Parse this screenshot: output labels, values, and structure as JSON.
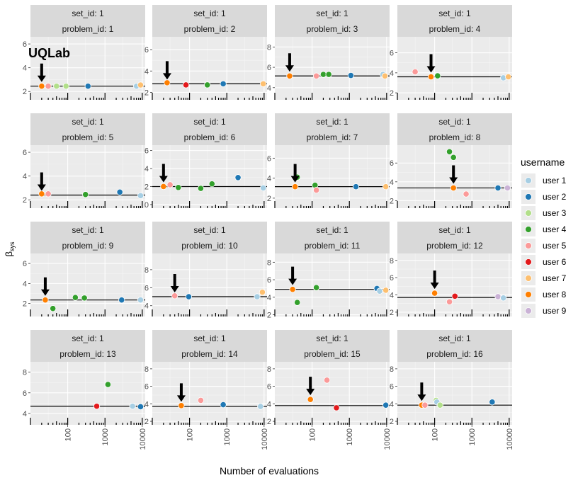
{
  "y_axis_label": "β",
  "y_axis_label_sub": "sys",
  "x_axis_label": "Number of evaluations",
  "brand": "UQLab",
  "legend": {
    "title": "username",
    "items": [
      {
        "name": "user 1",
        "color": "#A6CEE3"
      },
      {
        "name": "user 2",
        "color": "#1F78B4"
      },
      {
        "name": "user 3",
        "color": "#B2DF8A"
      },
      {
        "name": "user 4",
        "color": "#33A02C"
      },
      {
        "name": "user 5",
        "color": "#FB9A99"
      },
      {
        "name": "user 6",
        "color": "#E31A1C"
      },
      {
        "name": "user 7",
        "color": "#FDBF6F"
      },
      {
        "name": "user 8",
        "color": "#FF7F00"
      },
      {
        "name": "user 9",
        "color": "#CAB2D6"
      }
    ]
  },
  "chart_data": [
    {
      "type": "scatter",
      "set_label": "set_id: 1",
      "problem_label": "problem_id: 1",
      "y_ticks": [
        "2",
        "4",
        "6"
      ],
      "y_values": [
        2,
        4,
        6
      ],
      "ylim": [
        1.3,
        6.6
      ],
      "ref": 2.45,
      "arrow": {
        "x": 20,
        "y": 2.45
      },
      "points": [
        {
          "x": 20,
          "y": 2.45,
          "user": "user 8"
        },
        {
          "x": 30,
          "y": 2.45,
          "user": "user 5"
        },
        {
          "x": 50,
          "y": 2.45,
          "user": "user 3"
        },
        {
          "x": 90,
          "y": 2.45,
          "user": "user 3"
        },
        {
          "x": 350,
          "y": 2.45,
          "user": "user 2"
        },
        {
          "x": 7000,
          "y": 2.45,
          "user": "user 1"
        },
        {
          "x": 9000,
          "y": 2.55,
          "user": "user 7"
        }
      ]
    },
    {
      "type": "scatter",
      "set_label": "set_id: 1",
      "problem_label": "problem_id: 2",
      "y_ticks": [
        "2",
        "4",
        "6"
      ],
      "y_values": [
        2,
        4,
        6
      ],
      "ylim": [
        1.3,
        7.2
      ],
      "ref": 2.8,
      "arrow": {
        "x": 25,
        "y": 2.8
      },
      "points": [
        {
          "x": 25,
          "y": 2.9,
          "user": "user 8"
        },
        {
          "x": 80,
          "y": 2.7,
          "user": "user 6"
        },
        {
          "x": 300,
          "y": 2.7,
          "user": "user 4"
        },
        {
          "x": 800,
          "y": 2.8,
          "user": "user 2"
        },
        {
          "x": 9500,
          "y": 2.8,
          "user": "user 7"
        }
      ]
    },
    {
      "type": "scatter",
      "set_label": "set_id: 1",
      "problem_label": "problem_id: 3",
      "y_ticks": [
        "4",
        "6",
        "8"
      ],
      "y_values": [
        4,
        6,
        8
      ],
      "ylim": [
        2.8,
        9.0
      ],
      "ref": 5.15,
      "arrow": {
        "x": 25,
        "y": 5.15
      },
      "points": [
        {
          "x": 25,
          "y": 5.15,
          "user": "user 8"
        },
        {
          "x": 130,
          "y": 5.15,
          "user": "user 5"
        },
        {
          "x": 200,
          "y": 5.3,
          "user": "user 4"
        },
        {
          "x": 280,
          "y": 5.3,
          "user": "user 4"
        },
        {
          "x": 1100,
          "y": 5.2,
          "user": "user 2"
        },
        {
          "x": 8000,
          "y": 5.3,
          "user": "user 1"
        },
        {
          "x": 9000,
          "y": 5.15,
          "user": "user 7"
        }
      ]
    },
    {
      "type": "scatter",
      "set_label": "set_id: 1",
      "problem_label": "problem_id: 4",
      "y_ticks": [
        "2",
        "4",
        "6"
      ],
      "y_values": [
        2,
        4,
        6
      ],
      "ylim": [
        1.3,
        7.6
      ],
      "ref": 3.6,
      "arrow": {
        "x": 80,
        "y": 3.6
      },
      "points": [
        {
          "x": 30,
          "y": 4.1,
          "user": "user 5"
        },
        {
          "x": 80,
          "y": 3.6,
          "user": "user 8"
        },
        {
          "x": 120,
          "y": 3.7,
          "user": "user 4"
        },
        {
          "x": 7000,
          "y": 3.5,
          "user": "user 1"
        },
        {
          "x": 9500,
          "y": 3.6,
          "user": "user 7"
        }
      ]
    },
    {
      "type": "scatter",
      "set_label": "set_id: 1",
      "problem_label": "problem_id: 5",
      "y_ticks": [
        "2",
        "4",
        "6"
      ],
      "y_values": [
        2,
        4,
        6
      ],
      "ylim": [
        1.3,
        6.6
      ],
      "ref": 2.4,
      "arrow": {
        "x": 20,
        "y": 2.4
      },
      "points": [
        {
          "x": 20,
          "y": 2.5,
          "user": "user 8"
        },
        {
          "x": 30,
          "y": 2.5,
          "user": "user 5"
        },
        {
          "x": 300,
          "y": 2.45,
          "user": "user 4"
        },
        {
          "x": 2500,
          "y": 2.65,
          "user": "user 2"
        },
        {
          "x": 9000,
          "y": 2.35,
          "user": "user 1"
        }
      ]
    },
    {
      "type": "scatter",
      "set_label": "set_id: 1",
      "problem_label": "problem_id: 6",
      "y_ticks": [
        "0",
        "2",
        "4",
        "6"
      ],
      "y_values": [
        0,
        2,
        4,
        6
      ],
      "ylim": [
        -0.4,
        6.6
      ],
      "ref": 2.0,
      "arrow": {
        "x": 20,
        "y": 2.0
      },
      "points": [
        {
          "x": 20,
          "y": 2.0,
          "user": "user 8"
        },
        {
          "x": 30,
          "y": 2.2,
          "user": "user 5"
        },
        {
          "x": 50,
          "y": 1.9,
          "user": "user 4"
        },
        {
          "x": 200,
          "y": 1.8,
          "user": "user 4"
        },
        {
          "x": 400,
          "y": 2.3,
          "user": "user 4"
        },
        {
          "x": 2000,
          "y": 3.0,
          "user": "user 2"
        },
        {
          "x": 9500,
          "y": 1.85,
          "user": "user 1"
        }
      ]
    },
    {
      "type": "scatter",
      "set_label": "set_id: 1",
      "problem_label": "problem_id: 7",
      "y_ticks": [
        "2",
        "4",
        "6"
      ],
      "y_values": [
        2,
        4,
        6
      ],
      "ylim": [
        1.0,
        7.3
      ],
      "ref": 3.15,
      "arrow": {
        "x": 35,
        "y": 3.15
      },
      "points": [
        {
          "x": 35,
          "y": 3.15,
          "user": "user 8"
        },
        {
          "x": 40,
          "y": 4.1,
          "user": "user 4"
        },
        {
          "x": 120,
          "y": 3.3,
          "user": "user 4"
        },
        {
          "x": 130,
          "y": 2.8,
          "user": "user 5"
        },
        {
          "x": 1500,
          "y": 3.15,
          "user": "user 2"
        },
        {
          "x": 9500,
          "y": 3.15,
          "user": "user 7"
        }
      ]
    },
    {
      "type": "scatter",
      "set_label": "set_id: 1",
      "problem_label": "problem_id: 8",
      "y_ticks": [
        "2",
        "4",
        "6"
      ],
      "y_values": [
        2,
        4,
        6
      ],
      "ylim": [
        1.2,
        7.9
      ],
      "ref": 3.35,
      "arrow": {
        "x": 320,
        "y": 3.35
      },
      "points": [
        {
          "x": 250,
          "y": 7.2,
          "user": "user 4"
        },
        {
          "x": 320,
          "y": 6.6,
          "user": "user 4"
        },
        {
          "x": 320,
          "y": 3.35,
          "user": "user 8"
        },
        {
          "x": 700,
          "y": 2.7,
          "user": "user 5"
        },
        {
          "x": 5000,
          "y": 3.35,
          "user": "user 2"
        },
        {
          "x": 9000,
          "y": 3.35,
          "user": "user 9"
        }
      ]
    },
    {
      "type": "scatter",
      "set_label": "set_id: 1",
      "problem_label": "problem_id: 9",
      "y_ticks": [
        "2",
        "4",
        "6"
      ],
      "y_values": [
        2,
        4,
        6
      ],
      "ylim": [
        0.7,
        7.0
      ],
      "ref": 2.35,
      "arrow": {
        "x": 25,
        "y": 2.35
      },
      "points": [
        {
          "x": 25,
          "y": 2.35,
          "user": "user 8"
        },
        {
          "x": 40,
          "y": 1.5,
          "user": "user 4"
        },
        {
          "x": 160,
          "y": 2.6,
          "user": "user 4"
        },
        {
          "x": 280,
          "y": 2.55,
          "user": "user 4"
        },
        {
          "x": 2800,
          "y": 2.35,
          "user": "user 2"
        },
        {
          "x": 9000,
          "y": 2.35,
          "user": "user 1"
        }
      ]
    },
    {
      "type": "scatter",
      "set_label": "set_id: 1",
      "problem_label": "problem_id: 10",
      "y_ticks": [
        "4",
        "6",
        "8"
      ],
      "y_values": [
        4,
        6,
        8
      ],
      "ylim": [
        2.8,
        9.8
      ],
      "ref": 5.0,
      "arrow": {
        "x": 40,
        "y": 5.0
      },
      "points": [
        {
          "x": 40,
          "y": 5.1,
          "user": "user 5"
        },
        {
          "x": 95,
          "y": 5.0,
          "user": "user 2"
        },
        {
          "x": 6500,
          "y": 5.0,
          "user": "user 1"
        },
        {
          "x": 9000,
          "y": 5.5,
          "user": "user 7"
        }
      ]
    },
    {
      "type": "scatter",
      "set_label": "set_id: 1",
      "problem_label": "problem_id: 11",
      "y_ticks": [
        "2",
        "4",
        "6",
        "8"
      ],
      "y_values": [
        2,
        4,
        6,
        8
      ],
      "ylim": [
        1.8,
        9.0
      ],
      "ref": 4.9,
      "arrow": {
        "x": 30,
        "y": 4.9
      },
      "points": [
        {
          "x": 30,
          "y": 4.9,
          "user": "user 8"
        },
        {
          "x": 40,
          "y": 3.4,
          "user": "user 4"
        },
        {
          "x": 130,
          "y": 5.1,
          "user": "user 4"
        },
        {
          "x": 5500,
          "y": 5.0,
          "user": "user 2"
        },
        {
          "x": 6500,
          "y": 4.7,
          "user": "user 1"
        },
        {
          "x": 9500,
          "y": 4.8,
          "user": "user 7"
        }
      ]
    },
    {
      "type": "scatter",
      "set_label": "set_id: 1",
      "problem_label": "problem_id: 12",
      "y_ticks": [
        "2",
        "4",
        "6",
        "8"
      ],
      "y_values": [
        2,
        4,
        6,
        8
      ],
      "ylim": [
        1.5,
        8.8
      ],
      "ref": 3.7,
      "arrow": {
        "x": 100,
        "y": 4.2
      },
      "points": [
        {
          "x": 100,
          "y": 4.2,
          "user": "user 8"
        },
        {
          "x": 250,
          "y": 3.2,
          "user": "user 5"
        },
        {
          "x": 350,
          "y": 3.85,
          "user": "user 6"
        },
        {
          "x": 5000,
          "y": 3.8,
          "user": "user 9"
        },
        {
          "x": 7000,
          "y": 3.65,
          "user": "user 1"
        }
      ]
    },
    {
      "type": "scatter",
      "set_label": "set_id: 1",
      "problem_label": "problem_id: 13",
      "y_ticks": [
        "4",
        "6",
        "8"
      ],
      "y_values": [
        4,
        6,
        8
      ],
      "ylim": [
        2.9,
        9.0
      ],
      "ref": 4.7,
      "arrow": null,
      "points": [
        {
          "x": 600,
          "y": 4.7,
          "user": "user 6"
        },
        {
          "x": 1200,
          "y": 6.8,
          "user": "user 4"
        },
        {
          "x": 5500,
          "y": 4.7,
          "user": "user 1"
        },
        {
          "x": 9000,
          "y": 4.65,
          "user": "user 2"
        }
      ]
    },
    {
      "type": "scatter",
      "set_label": "set_id: 1",
      "problem_label": "problem_id: 14",
      "y_ticks": [
        "2",
        "4",
        "6",
        "8"
      ],
      "y_values": [
        2,
        4,
        6,
        8
      ],
      "ylim": [
        1.6,
        8.8
      ],
      "ref": 3.7,
      "arrow": {
        "x": 60,
        "y": 3.75
      },
      "points": [
        {
          "x": 60,
          "y": 3.8,
          "user": "user 8"
        },
        {
          "x": 200,
          "y": 4.4,
          "user": "user 5"
        },
        {
          "x": 800,
          "y": 3.9,
          "user": "user 2"
        },
        {
          "x": 8000,
          "y": 3.7,
          "user": "user 1"
        }
      ]
    },
    {
      "type": "scatter",
      "set_label": "set_id: 1",
      "problem_label": "problem_id: 15",
      "y_ticks": [
        "2",
        "4",
        "6",
        "8"
      ],
      "y_values": [
        2,
        4,
        6,
        8
      ],
      "ylim": [
        1.6,
        8.8
      ],
      "ref": 3.8,
      "arrow": {
        "x": 90,
        "y": 4.5
      },
      "points": [
        {
          "x": 90,
          "y": 4.5,
          "user": "user 8"
        },
        {
          "x": 250,
          "y": 6.7,
          "user": "user 5"
        },
        {
          "x": 450,
          "y": 3.55,
          "user": "user 6"
        },
        {
          "x": 9500,
          "y": 3.85,
          "user": "user 2"
        }
      ]
    },
    {
      "type": "scatter",
      "set_label": "set_id: 1",
      "problem_label": "problem_id: 16",
      "y_ticks": [
        "2",
        "4",
        "6",
        "8"
      ],
      "y_values": [
        2,
        4,
        6,
        8
      ],
      "ylim": [
        1.6,
        8.8
      ],
      "ref": 3.85,
      "arrow": {
        "x": 45,
        "y": 3.85
      },
      "points": [
        {
          "x": 45,
          "y": 3.85,
          "user": "user 8"
        },
        {
          "x": 55,
          "y": 3.85,
          "user": "user 5"
        },
        {
          "x": 110,
          "y": 4.4,
          "user": "user 3"
        },
        {
          "x": 115,
          "y": 4.2,
          "user": "user 1"
        },
        {
          "x": 140,
          "y": 3.85,
          "user": "user 3"
        },
        {
          "x": 3500,
          "y": 4.2,
          "user": "user 2"
        }
      ]
    }
  ],
  "x_axis": {
    "type": "log",
    "xlim": [
      10,
      12000
    ],
    "tick_labels": [
      "100",
      "1000",
      "10000"
    ],
    "tick_values": [
      100,
      1000,
      10000
    ]
  }
}
